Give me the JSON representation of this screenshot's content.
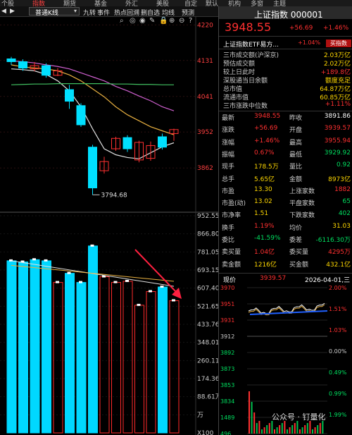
{
  "topnav": [
    "个股",
    "指数",
    "期货",
    "基金",
    "外汇",
    "美股",
    "自定",
    "默认",
    "机构",
    "多窗",
    "主题"
  ],
  "toolbar": {
    "select_value": "普通K线",
    "tabs": [
      "九转",
      "事件",
      "热点回溯",
      "删自选",
      "均线",
      "预测"
    ]
  },
  "price_axis": [
    "4220",
    "4131",
    "4041",
    "3952",
    "3862"
  ],
  "volume_axis": [
    "952.55万",
    "866.80万",
    "781.05万",
    "693.15万",
    "607.40万",
    "521.65万",
    "433.76万",
    "348.01万",
    "260.11万",
    "174.36万",
    "88.61万",
    "万",
    "X100"
  ],
  "low_annotation": "3794.68",
  "chart_data": {
    "type": "candlestick",
    "candles": [
      {
        "o": 4135,
        "c": 4128,
        "h": 4140,
        "l": 4120
      },
      {
        "o": 4128,
        "c": 4112,
        "h": 4134,
        "l": 4105
      },
      {
        "o": 4110,
        "c": 4118,
        "h": 4127,
        "l": 4104
      },
      {
        "o": 4118,
        "c": 4094,
        "h": 4124,
        "l": 4088
      },
      {
        "o": 4094,
        "c": 4105,
        "h": 4112,
        "l": 4092
      },
      {
        "o": 4058,
        "c": 4029,
        "h": 4070,
        "l": 4010
      },
      {
        "o": 4018,
        "c": 3970,
        "h": 4024,
        "l": 3965
      },
      {
        "o": 3914,
        "c": 3812,
        "h": 3920,
        "l": 3794.68
      },
      {
        "o": 3855,
        "c": 3878,
        "h": 3890,
        "l": 3848
      },
      {
        "o": 3910,
        "c": 3936,
        "h": 3940,
        "l": 3905
      },
      {
        "o": 3938,
        "c": 3910,
        "h": 3944,
        "l": 3902
      },
      {
        "o": 3882,
        "c": 3926,
        "h": 3930,
        "l": 3876
      },
      {
        "o": 3886,
        "c": 3918,
        "h": 3928,
        "l": 3880
      },
      {
        "o": 3940,
        "c": 3914,
        "h": 3948,
        "l": 3908
      },
      {
        "o": 3948,
        "c": 3958,
        "h": 3960,
        "l": 3930
      }
    ],
    "ma_lines": [
      {
        "color": "#e0e0e0",
        "values": [
          4110,
          4108,
          4105,
          4096,
          4080,
          4055,
          4015,
          3960,
          3910,
          3895,
          3888,
          3885,
          3900,
          3915,
          3925
        ]
      },
      {
        "color": "#e8b040",
        "values": [
          4120,
          4115,
          4112,
          4110,
          4105,
          4095,
          4080,
          4060,
          4040,
          4015,
          3995,
          3980,
          3965,
          3955,
          3945
        ]
      },
      {
        "color": "#d060d0",
        "values": [
          4130,
          4128,
          4125,
          4120,
          4116,
          4110,
          4100,
          4090,
          4080,
          4066,
          4055,
          4042,
          4030,
          4015,
          4005
        ]
      },
      {
        "color": "#40c060",
        "values": [
          4070,
          4071,
          4072,
          4072,
          4073,
          4073,
          4073,
          4073,
          4073,
          4072,
          4072,
          4071,
          4071,
          4070,
          4070
        ]
      }
    ],
    "volume": [
      {
        "v": 755,
        "up": false
      },
      {
        "v": 750,
        "up": false
      },
      {
        "v": 760,
        "up": false
      },
      {
        "v": 755,
        "up": false
      },
      {
        "v": 660,
        "up": true
      },
      {
        "v": 700,
        "up": false
      },
      {
        "v": 660,
        "up": false
      },
      {
        "v": 820,
        "up": false
      },
      {
        "v": 685,
        "up": true
      },
      {
        "v": 660,
        "up": true
      },
      {
        "v": 665,
        "up": true
      },
      {
        "v": 560,
        "up": true
      },
      {
        "v": 620,
        "up": true
      },
      {
        "v": 640,
        "up": false
      },
      {
        "v": 580,
        "up": true
      }
    ],
    "ylim": [
      3760,
      4240
    ],
    "vol_max": 952.55
  },
  "quote": {
    "title": "上证指数 000001",
    "price": "3948.55",
    "change": "+56.69",
    "change_pct": "+1.46%",
    "etf_name": "上证指数ETF易方...",
    "etf_pct": "+1.04%",
    "etf_buy": "买指数",
    "turnover_rows": [
      {
        "label": "三市成交额(沪深京)",
        "value": "2.03万亿"
      },
      {
        "label": "预估成交额",
        "value": "2.02万亿"
      },
      {
        "label": "较上日此时",
        "value": "+189.8亿"
      },
      {
        "label": "深股通当日余额",
        "value": "额度充足"
      },
      {
        "label": "总市值",
        "value": "64.87万亿"
      },
      {
        "label": "流通市值",
        "value": "60.85万亿"
      },
      {
        "label": "三市涨跌中位数",
        "value": "+1.11%"
      }
    ],
    "grid": [
      [
        "最新",
        "3948.55",
        "昨收",
        "3891.86"
      ],
      [
        "涨跌",
        "+56.69",
        "开盘",
        "3939.57"
      ],
      [
        "涨幅",
        "+1.46%",
        "最高",
        "3955.94"
      ],
      [
        "振幅",
        "0.67%",
        "最低",
        "3929.92"
      ],
      [
        "现手",
        "178.5万",
        "量比",
        "0.92"
      ],
      [
        "总手",
        "5.65亿",
        "金额",
        "8973亿"
      ],
      [
        "市盈",
        "13.30",
        "上涨家数",
        "1882"
      ],
      [
        "市盈(动)",
        "13.02",
        "平盘家数",
        "65"
      ],
      [
        "市净率",
        "1.51",
        "下跌家数",
        "402"
      ],
      [
        "换手",
        "1.19%",
        "均价",
        "31.03"
      ],
      [
        "委比",
        "-41.59%",
        "委差",
        "-6116.30万"
      ],
      [
        "卖买量",
        "1.04亿",
        "委买量",
        "4295万"
      ],
      [
        "卖金额",
        "1216亿",
        "买金额",
        "432.1亿"
      ]
    ],
    "mini_header": {
      "label": "现价",
      "price": "3939.57",
      "date": "2026-04-01,三"
    },
    "mini_left_axis": [
      "3970",
      "3951",
      "3931",
      "3912",
      "3892",
      "3873",
      "3853",
      "3834",
      "1489",
      "496"
    ],
    "mini_right_axis": [
      "2.00%",
      "1.51%",
      "1.03%",
      "0.00%",
      "0.49%",
      "0.99%",
      "1.99%"
    ]
  },
  "watermark": "公众号 · 钉量化"
}
